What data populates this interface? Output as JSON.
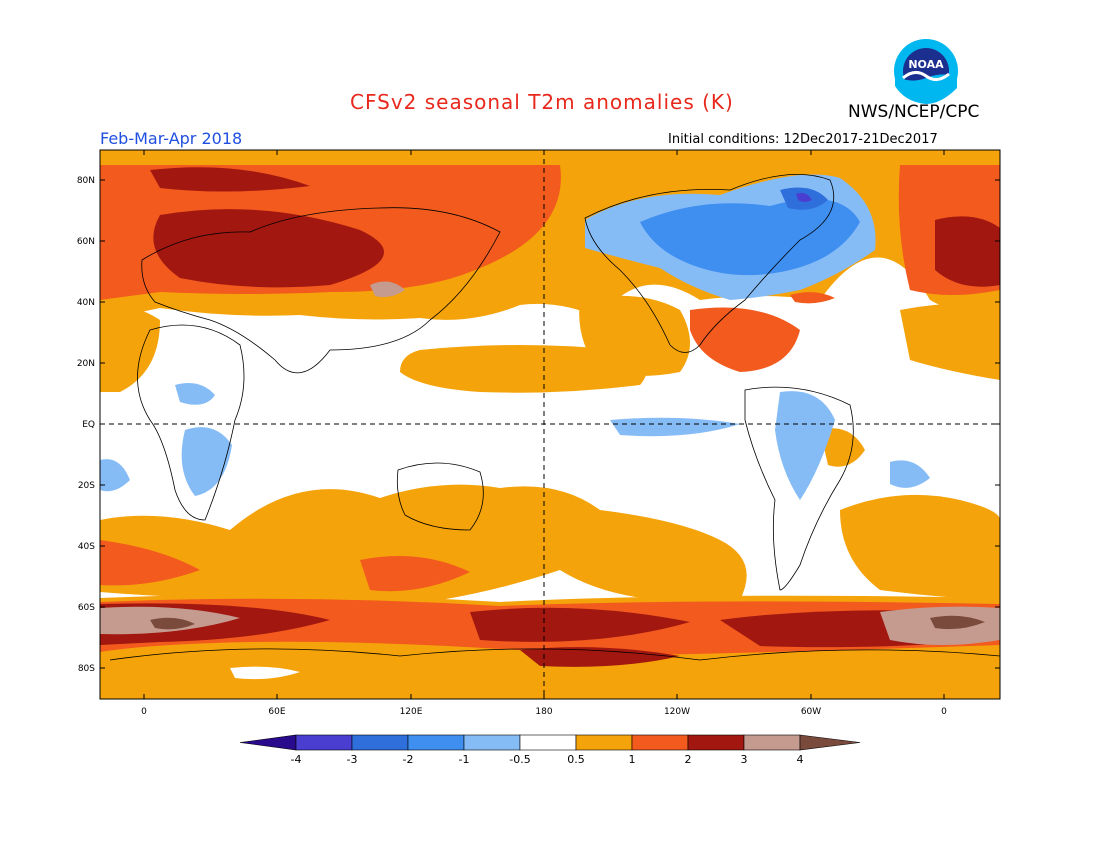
{
  "title": "CFSv2 seasonal T2m anomalies (K)",
  "agency": "NWS/NCEP/CPC",
  "logo_text": "NOAA",
  "season": "Feb-Mar-Apr 2018",
  "initial_conditions": "Initial conditions: 12Dec2017-21Dec2017",
  "lat_labels": [
    "80N",
    "60N",
    "40N",
    "20N",
    "EQ",
    "20S",
    "40S",
    "60S",
    "80S"
  ],
  "lon_labels": [
    "0",
    "60E",
    "120E",
    "180",
    "120W",
    "60W",
    "0"
  ],
  "colorbar": {
    "colors": [
      "#2a0a8c",
      "#4a3ed0",
      "#2f6fdc",
      "#3f8ff0",
      "#86bcf6",
      "#ffffff",
      "#f5a30a",
      "#f25a1e",
      "#a2170f",
      "#c59b90",
      "#7a4a3c"
    ],
    "labels": [
      "-4",
      "-3",
      "-2",
      "-1",
      "-0.5",
      "0.5",
      "1",
      "2",
      "3",
      "4"
    ]
  }
}
